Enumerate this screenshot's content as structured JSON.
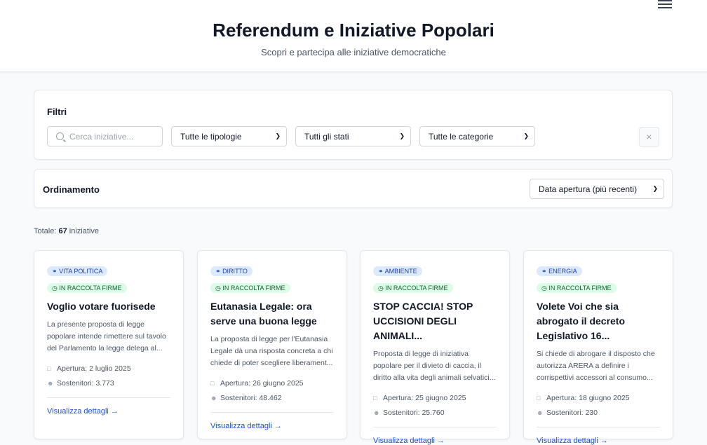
{
  "header": {
    "title": "Referendum e Iniziative Popolari",
    "subtitle": "Scopri e partecipa alle iniziative democratiche"
  },
  "filters": {
    "label": "Filtri",
    "search_placeholder": "Cerca iniziative...",
    "tipologia": "Tutte le tipologie",
    "stato": "Tutti gli stati",
    "categoria": "Tutte le categorie",
    "clear": "×"
  },
  "sort": {
    "label": "Ordinamento",
    "value": "Data apertura (più recenti)"
  },
  "total": {
    "prefix": "Totale:",
    "count": "67",
    "suffix": "iniziative"
  },
  "cards": [
    {
      "category": "VITA POLITICA",
      "status": "IN RACCOLTA FIRME",
      "title": "Voglio votare fuorisede",
      "desc": "La presente proposta di legge popolare intende rimettere sul tavolo del Parlamento la legge delega al...",
      "opening": "Apertura: 2 luglio 2025",
      "supporters": "Sostenitori: 3.773",
      "link": "Visualizza dettagli →"
    },
    {
      "category": "DIRITTO",
      "status": "IN RACCOLTA FIRME",
      "title": "Eutanasia Legale: ora serve una buona legge",
      "desc": "La proposta di legge per l'Eutanasia Legale dà una risposta concreta a chi chiede di poter scegliere liberament...",
      "opening": "Apertura: 26 giugno 2025",
      "supporters": "Sostenitori: 48.462",
      "link": "Visualizza dettagli →"
    },
    {
      "category": "AMBIENTE",
      "status": "IN RACCOLTA FIRME",
      "title": "STOP CACCIA! STOP UCCISIONI DEGLI ANIMALI...",
      "desc": "Proposta di legge di iniziativa popolare per il divieto di caccia, il diritto alla vita degli animali selvatici...",
      "opening": "Apertura: 25 giugno 2025",
      "supporters": "Sostenitori: 25.760",
      "link": "Visualizza dettagli →"
    },
    {
      "category": "ENERGIA",
      "status": "IN RACCOLTA FIRME",
      "title": "Volete Voi che sia abrogato il decreto Legislativo 16...",
      "desc": "Si chiede di abrogare il disposto che autorizza ARERA a definire i corrispettivi accessori al consumo...",
      "opening": "Apertura: 18 giugno 2025",
      "supporters": "Sostenitori: 230",
      "link": "Visualizza dettagli →"
    }
  ]
}
